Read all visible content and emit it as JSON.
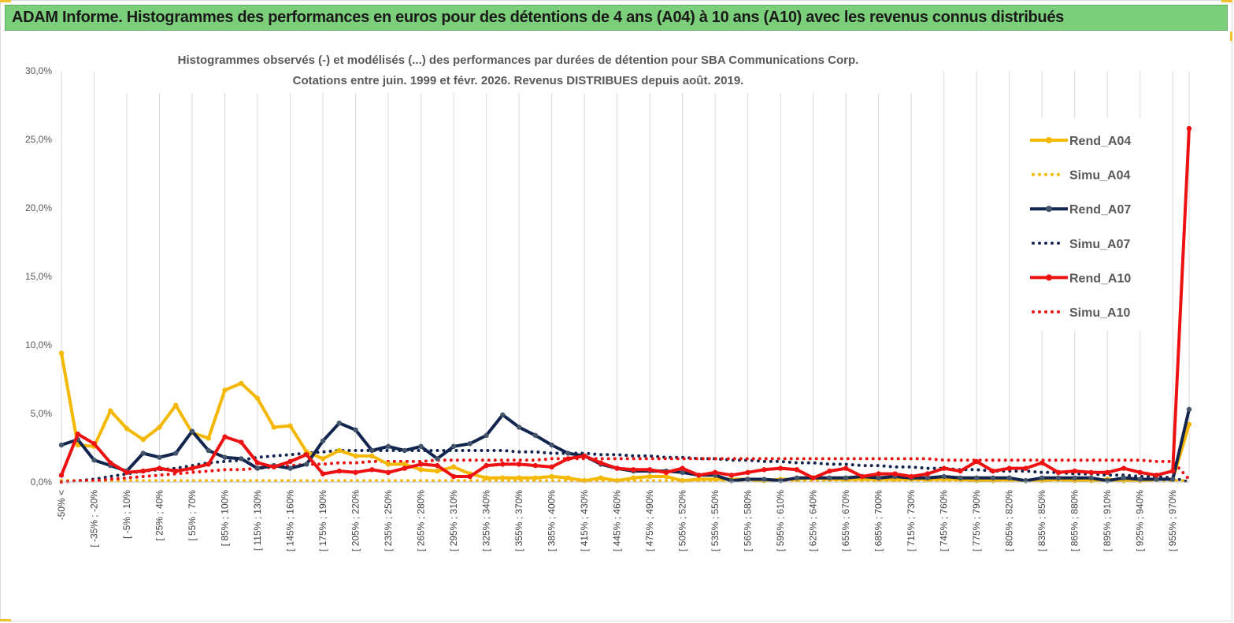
{
  "header": {
    "title": "ADAM Informe. Histogrammes des performances en euros pour des détentions de 4 ans (A04) à 10 ans (A10) avec les revenus connus distribués"
  },
  "colors": {
    "title_bg": "#7ccf7a",
    "a04": "#f5b800",
    "a07": "#12254f",
    "a10": "#ee1111",
    "grid": "#d9d9d9"
  },
  "chart_data": {
    "type": "line",
    "title_lines": [
      "Histogrammes observés (-) et modélisés (...) des performances par durées de détention pour SBA Communications Corp.",
      "Cotations entre juin. 1999 et févr. 2026. Revenus DISTRIBUES depuis août. 2019."
    ],
    "xlabel": "",
    "ylabel": "",
    "ylim": [
      0,
      30
    ],
    "y_ticks": [
      "0,0%",
      "5,0%",
      "10,0%",
      "15,0%",
      "20,0%",
      "25,0%",
      "30,0%"
    ],
    "x_tick_labels": [
      "-50% <",
      "[ -35% ; -20%",
      "[ -5% ; 10%",
      "[ 25% ; 40%",
      "[ 55% ; 70%",
      "[ 85% ; 100%",
      "[ 115% ; 130%",
      "[ 145% ; 160%",
      "[ 175% ; 190%",
      "[ 205% ; 220%",
      "[ 235% ; 250%",
      "[ 265% ; 280%",
      "[ 295% ; 310%",
      "[ 325% ; 340%",
      "[ 355% ; 370%",
      "[ 385% ; 400%",
      "[ 415% ; 430%",
      "[ 445% ; 460%",
      "[ 475% ; 490%",
      "[ 505% ; 520%",
      "[ 535% ; 550%",
      "[ 565% ; 580%",
      "[ 595% ; 610%",
      "[ 625% ; 640%",
      "[ 655% ; 670%",
      "[ 685% ; 700%",
      "[ 715% ; 730%",
      "[ 745% ; 760%",
      "[ 775% ; 790%",
      "[ 805% ; 820%",
      "[ 835% ; 850%",
      "[ 865% ; 880%",
      "[ 895% ; 910%",
      "[ 925% ; 940%",
      "[ 955% ; 970%"
    ],
    "category_count": 70,
    "series": [
      {
        "name": "Rend_A04",
        "style": "solid",
        "marker": true,
        "color": "#f5b800",
        "values": [
          9.4,
          2.7,
          2.6,
          5.2,
          3.9,
          3.1,
          4.0,
          5.6,
          3.6,
          3.2,
          6.7,
          7.2,
          6.1,
          4.0,
          4.1,
          2.2,
          1.7,
          2.3,
          1.9,
          1.9,
          1.3,
          1.3,
          0.9,
          0.8,
          1.1,
          0.6,
          0.3,
          0.3,
          0.3,
          0.3,
          0.4,
          0.3,
          0.1,
          0.3,
          0.1,
          0.3,
          0.4,
          0.4,
          0.1,
          0.2,
          0.2,
          0.2,
          0.2,
          0.1,
          0.2,
          0.2,
          0.3,
          0.2,
          0.2,
          0.2,
          0.2,
          0.2,
          0.2,
          0.2,
          0.2,
          0.2,
          0.1,
          0.1,
          0.2,
          0.1,
          0.1,
          0.2,
          0.1,
          0.1,
          0.2,
          0.1,
          0.1,
          0.2,
          0.2,
          4.2
        ]
      },
      {
        "name": "Simu_A04",
        "style": "dotted",
        "marker": false,
        "color": "#f5b800",
        "values": [
          0.1,
          0.1,
          0.1,
          0.1,
          0.1,
          0.1,
          0.1,
          0.1,
          0.1,
          0.1,
          0.1,
          0.1,
          0.1,
          0.1,
          0.1,
          0.1,
          0.1,
          0.1,
          0.1,
          0.1,
          0.1,
          0.1,
          0.1,
          0.1,
          0.1,
          0.1,
          0.1,
          0.1,
          0.1,
          0.1,
          0.1,
          0.1,
          0.1,
          0.1,
          0.1,
          0.1,
          0.1,
          0.1,
          0.1,
          0.1,
          0.1,
          0.1,
          0.1,
          0.1,
          0.1,
          0.1,
          0.1,
          0.1,
          0.1,
          0.1,
          0.1,
          0.1,
          0.1,
          0.1,
          0.1,
          0.1,
          0.1,
          0.1,
          0.1,
          0.1,
          0.1,
          0.1,
          0.1,
          0.1,
          0.1,
          0.1,
          0.1,
          0.1,
          0.1,
          0.1
        ]
      },
      {
        "name": "Rend_A07",
        "style": "solid",
        "marker": true,
        "color": "#12254f",
        "values": [
          2.7,
          3.1,
          1.6,
          1.2,
          0.8,
          2.1,
          1.8,
          2.1,
          3.7,
          2.3,
          1.8,
          1.7,
          1.0,
          1.2,
          1.0,
          1.3,
          3.0,
          4.3,
          3.8,
          2.3,
          2.6,
          2.3,
          2.6,
          1.7,
          2.6,
          2.8,
          3.4,
          4.9,
          4.0,
          3.4,
          2.7,
          2.1,
          1.9,
          1.3,
          1.0,
          0.8,
          0.8,
          0.8,
          0.7,
          0.5,
          0.5,
          0.1,
          0.2,
          0.2,
          0.1,
          0.3,
          0.3,
          0.3,
          0.3,
          0.4,
          0.3,
          0.4,
          0.3,
          0.3,
          0.4,
          0.3,
          0.3,
          0.3,
          0.3,
          0.1,
          0.3,
          0.3,
          0.3,
          0.3,
          0.1,
          0.3,
          0.2,
          0.2,
          0.2,
          5.3
        ]
      },
      {
        "name": "Simu_A07",
        "style": "dotted",
        "marker": false,
        "color": "#12254f",
        "values": [
          0.0,
          0.1,
          0.2,
          0.4,
          0.6,
          0.8,
          0.9,
          1.0,
          1.2,
          1.4,
          1.5,
          1.6,
          1.8,
          1.9,
          2.0,
          2.1,
          2.2,
          2.3,
          2.3,
          2.3,
          2.3,
          2.3,
          2.3,
          2.3,
          2.3,
          2.3,
          2.3,
          2.3,
          2.2,
          2.2,
          2.1,
          2.1,
          2.1,
          2.0,
          2.0,
          1.9,
          1.9,
          1.8,
          1.8,
          1.7,
          1.7,
          1.6,
          1.6,
          1.5,
          1.5,
          1.4,
          1.4,
          1.3,
          1.3,
          1.2,
          1.2,
          1.1,
          1.1,
          1.0,
          1.0,
          0.9,
          0.9,
          0.8,
          0.8,
          0.8,
          0.7,
          0.7,
          0.6,
          0.6,
          0.5,
          0.5,
          0.4,
          0.4,
          0.3,
          0.0
        ]
      },
      {
        "name": "Rend_A10",
        "style": "solid",
        "marker": true,
        "color": "#ee1111",
        "values": [
          0.5,
          3.5,
          2.8,
          1.4,
          0.7,
          0.8,
          1.0,
          0.8,
          1.0,
          1.3,
          3.3,
          2.9,
          1.4,
          1.1,
          1.5,
          2.0,
          0.6,
          0.8,
          0.7,
          0.9,
          0.7,
          1.0,
          1.3,
          1.2,
          0.4,
          0.4,
          1.2,
          1.3,
          1.3,
          1.2,
          1.1,
          1.7,
          1.9,
          1.4,
          1.0,
          0.9,
          0.9,
          0.7,
          1.0,
          0.5,
          0.7,
          0.5,
          0.7,
          0.9,
          1.0,
          0.9,
          0.3,
          0.8,
          1.0,
          0.4,
          0.6,
          0.6,
          0.4,
          0.6,
          1.0,
          0.8,
          1.5,
          0.8,
          1.0,
          1.0,
          1.4,
          0.7,
          0.8,
          0.7,
          0.7,
          1.0,
          0.7,
          0.5,
          0.8,
          25.8
        ]
      },
      {
        "name": "Simu_A10",
        "style": "dotted",
        "marker": false,
        "color": "#ee1111",
        "values": [
          0.0,
          0.1,
          0.1,
          0.2,
          0.3,
          0.4,
          0.5,
          0.6,
          0.7,
          0.8,
          0.9,
          0.9,
          1.0,
          1.1,
          1.2,
          1.3,
          1.3,
          1.4,
          1.4,
          1.5,
          1.5,
          1.5,
          1.5,
          1.6,
          1.6,
          1.6,
          1.6,
          1.6,
          1.6,
          1.6,
          1.7,
          1.7,
          1.7,
          1.7,
          1.7,
          1.7,
          1.7,
          1.7,
          1.7,
          1.7,
          1.7,
          1.7,
          1.7,
          1.7,
          1.7,
          1.7,
          1.7,
          1.7,
          1.7,
          1.7,
          1.7,
          1.7,
          1.7,
          1.7,
          1.6,
          1.6,
          1.6,
          1.6,
          1.6,
          1.6,
          1.6,
          1.6,
          1.6,
          1.6,
          1.6,
          1.6,
          1.6,
          1.5,
          1.5,
          0.2
        ]
      }
    ],
    "legend": [
      "Rend_A04",
      "Simu_A04",
      "Rend_A07",
      "Simu_A07",
      "Rend_A10",
      "Simu_A10"
    ],
    "legend_position": "right",
    "grid": true
  }
}
